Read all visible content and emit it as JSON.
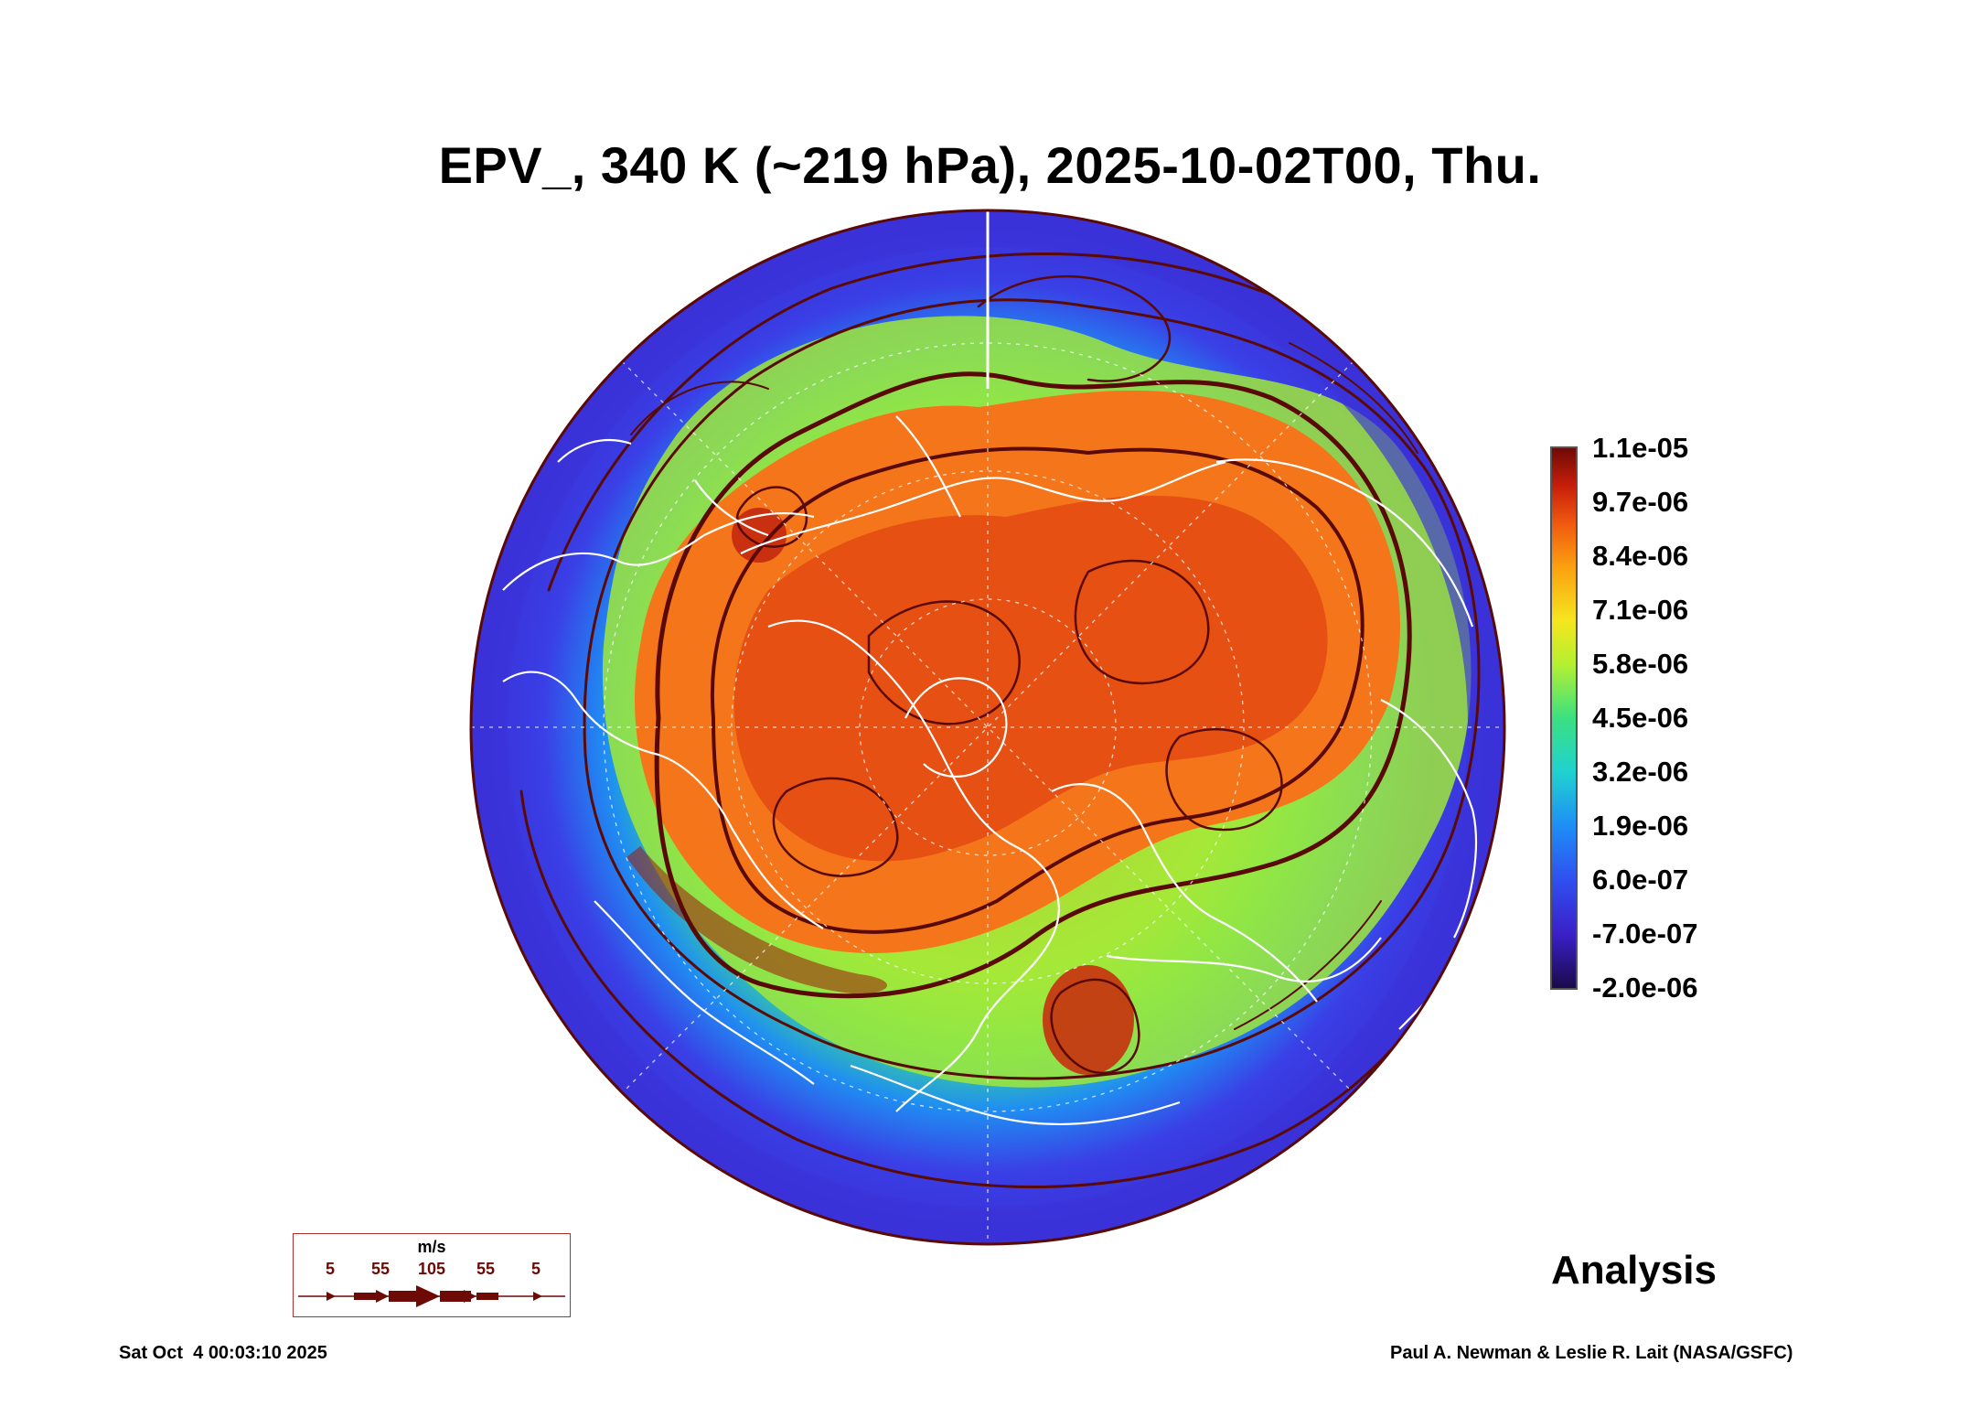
{
  "title": "EPV_, 340 K (~219 hPa), 2025-10-02T00, Thu.",
  "colorbar": {
    "labels": [
      "1.1e-05",
      "9.7e-06",
      "8.4e-06",
      "7.1e-06",
      "5.8e-06",
      "4.5e-06",
      "3.2e-06",
      "1.9e-06",
      "6.0e-07",
      "-7.0e-07",
      "-2.0e-06"
    ],
    "colors": [
      "#6e0a06",
      "#c81e0a",
      "#f05a10",
      "#fba010",
      "#f5e61e",
      "#b4f030",
      "#3be080",
      "#20d2d0",
      "#1e8ef5",
      "#3b20c8",
      "#1a0a4a"
    ]
  },
  "analysis_label": "Analysis",
  "wind_legend": {
    "unit": "m/s",
    "values": [
      "5",
      "55",
      "105",
      "55",
      "5"
    ]
  },
  "footer": {
    "timestamp": "Sat Oct  4 00:03:10 2025",
    "credit": "Paul A. Newman & Leslie R. Lait (NASA/GSFC)"
  }
}
